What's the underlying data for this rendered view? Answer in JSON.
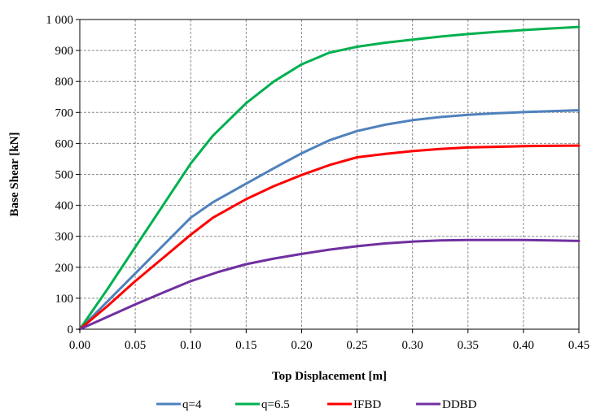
{
  "chart_data": {
    "type": "line",
    "title": "",
    "xlabel": "Top Displacement [m]",
    "ylabel": "Base Shear [kN]",
    "xlim": [
      0,
      0.45
    ],
    "ylim": [
      0,
      1000
    ],
    "grid": true,
    "legend_position": "bottom",
    "x_ticks": [
      "0.00",
      "0.05",
      "0.10",
      "0.15",
      "0.20",
      "0.25",
      "0.30",
      "0.35",
      "0.40",
      "0.45"
    ],
    "y_ticks": [
      "0",
      "100",
      "200",
      "300",
      "400",
      "500",
      "600",
      "700",
      "800",
      "900",
      "1 000"
    ],
    "series": [
      {
        "name": "q=4",
        "color": "#4f81bd",
        "points": [
          [
            0,
            0
          ],
          [
            0.025,
            90
          ],
          [
            0.05,
            180
          ],
          [
            0.075,
            270
          ],
          [
            0.1,
            360
          ],
          [
            0.12,
            410
          ],
          [
            0.15,
            470
          ],
          [
            0.175,
            520
          ],
          [
            0.2,
            568
          ],
          [
            0.225,
            610
          ],
          [
            0.25,
            640
          ],
          [
            0.275,
            660
          ],
          [
            0.3,
            675
          ],
          [
            0.325,
            685
          ],
          [
            0.35,
            692
          ],
          [
            0.375,
            697
          ],
          [
            0.4,
            701
          ],
          [
            0.425,
            704
          ],
          [
            0.45,
            707
          ]
        ]
      },
      {
        "name": "q=6.5",
        "color": "#00b050",
        "points": [
          [
            0,
            0
          ],
          [
            0.025,
            130
          ],
          [
            0.05,
            265
          ],
          [
            0.075,
            400
          ],
          [
            0.1,
            535
          ],
          [
            0.12,
            625
          ],
          [
            0.15,
            730
          ],
          [
            0.175,
            800
          ],
          [
            0.2,
            855
          ],
          [
            0.225,
            893
          ],
          [
            0.25,
            912
          ],
          [
            0.275,
            925
          ],
          [
            0.3,
            935
          ],
          [
            0.325,
            945
          ],
          [
            0.35,
            953
          ],
          [
            0.375,
            960
          ],
          [
            0.4,
            966
          ],
          [
            0.425,
            971
          ],
          [
            0.45,
            976
          ]
        ]
      },
      {
        "name": "IFBD",
        "color": "#ff0000",
        "points": [
          [
            0,
            0
          ],
          [
            0.025,
            75
          ],
          [
            0.05,
            155
          ],
          [
            0.075,
            230
          ],
          [
            0.1,
            305
          ],
          [
            0.12,
            360
          ],
          [
            0.15,
            420
          ],
          [
            0.175,
            462
          ],
          [
            0.2,
            498
          ],
          [
            0.225,
            530
          ],
          [
            0.25,
            555
          ],
          [
            0.275,
            566
          ],
          [
            0.3,
            575
          ],
          [
            0.325,
            582
          ],
          [
            0.35,
            587
          ],
          [
            0.375,
            589
          ],
          [
            0.4,
            591
          ],
          [
            0.425,
            592
          ],
          [
            0.45,
            593
          ]
        ]
      },
      {
        "name": "DDBD",
        "color": "#7030a0",
        "points": [
          [
            0,
            0
          ],
          [
            0.025,
            40
          ],
          [
            0.05,
            80
          ],
          [
            0.075,
            118
          ],
          [
            0.1,
            155
          ],
          [
            0.125,
            185
          ],
          [
            0.15,
            210
          ],
          [
            0.175,
            228
          ],
          [
            0.2,
            243
          ],
          [
            0.225,
            257
          ],
          [
            0.25,
            268
          ],
          [
            0.275,
            277
          ],
          [
            0.3,
            283
          ],
          [
            0.325,
            287
          ],
          [
            0.35,
            288
          ],
          [
            0.4,
            288
          ],
          [
            0.425,
            287
          ],
          [
            0.45,
            285
          ]
        ]
      }
    ]
  }
}
